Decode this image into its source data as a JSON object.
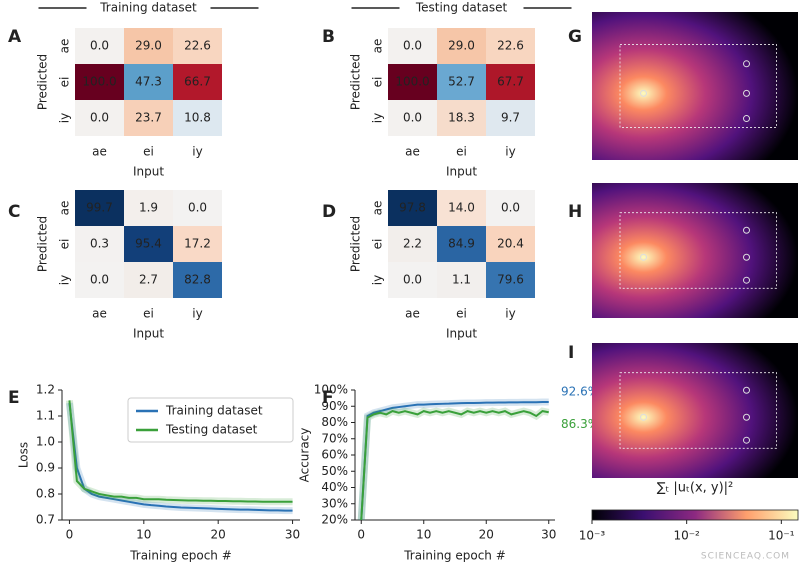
{
  "chart_data": [
    {
      "type": "heatmap",
      "panel": "A",
      "header": "Training dataset",
      "x_label": "Input",
      "y_label": "Predicted",
      "x_categories": [
        "ae",
        "ei",
        "iy"
      ],
      "y_categories": [
        "ae",
        "ei",
        "iy"
      ],
      "values": [
        [
          0.0,
          29.0,
          22.6
        ],
        [
          100.0,
          47.3,
          66.7
        ],
        [
          0.0,
          23.7,
          10.8
        ]
      ],
      "value_labels": [
        [
          "0.0",
          "29.0",
          "22.6"
        ],
        [
          "100.0",
          "47.3",
          "66.7"
        ],
        [
          "0.0",
          "23.7",
          "10.8"
        ]
      ],
      "colors": [
        [
          "#f3f1ef",
          "#f6c6a8",
          "#f8d6c0"
        ],
        [
          "#67001f",
          "#5c9fca",
          "#b2182b"
        ],
        [
          "#f3f1ef",
          "#f7d0b8",
          "#dde8f0"
        ]
      ]
    },
    {
      "type": "heatmap",
      "panel": "B",
      "header": "Testing dataset",
      "x_label": "Input",
      "y_label": "Predicted",
      "x_categories": [
        "ae",
        "ei",
        "iy"
      ],
      "y_categories": [
        "ae",
        "ei",
        "iy"
      ],
      "values": [
        [
          0.0,
          29.0,
          22.6
        ],
        [
          100.0,
          52.7,
          67.7
        ],
        [
          0.0,
          18.3,
          9.7
        ]
      ],
      "value_labels": [
        [
          "0.0",
          "29.0",
          "22.6"
        ],
        [
          "100.0",
          "52.7",
          "67.7"
        ],
        [
          "0.0",
          "18.3",
          "9.7"
        ]
      ],
      "colors": [
        [
          "#f3f1ef",
          "#f6c6a8",
          "#f8d6c0"
        ],
        [
          "#67001f",
          "#6aa8d1",
          "#ae1729"
        ],
        [
          "#f3f1ef",
          "#f6dccb",
          "#dfe8ef"
        ]
      ]
    },
    {
      "type": "heatmap",
      "panel": "C",
      "x_label": "Input",
      "y_label": "Predicted",
      "x_categories": [
        "ae",
        "ei",
        "iy"
      ],
      "y_categories": [
        "ae",
        "ei",
        "iy"
      ],
      "values": [
        [
          99.7,
          1.9,
          0.0
        ],
        [
          0.3,
          95.4,
          17.2
        ],
        [
          0.0,
          2.7,
          82.8
        ]
      ],
      "value_labels": [
        [
          "99.7",
          "1.9",
          "0.0"
        ],
        [
          "0.3",
          "95.4",
          "17.2"
        ],
        [
          "0.0",
          "2.7",
          "82.8"
        ]
      ],
      "colors": [
        [
          "#0b305f",
          "#f3efec",
          "#f3f2f1"
        ],
        [
          "#f3f1f0",
          "#123f79",
          "#f9d9c6"
        ],
        [
          "#f3f2f1",
          "#f2ede9",
          "#2d6aa8"
        ]
      ]
    },
    {
      "type": "heatmap",
      "panel": "D",
      "x_label": "Input",
      "y_label": "Predicted",
      "x_categories": [
        "ae",
        "ei",
        "iy"
      ],
      "y_categories": [
        "ae",
        "ei",
        "iy"
      ],
      "values": [
        [
          97.8,
          14.0,
          0.0
        ],
        [
          2.2,
          84.9,
          20.4
        ],
        [
          0.0,
          1.1,
          79.6
        ]
      ],
      "value_labels": [
        [
          "97.8",
          "14.0",
          "0.0"
        ],
        [
          "2.2",
          "84.9",
          "20.4"
        ],
        [
          "0.0",
          "1.1",
          "79.6"
        ]
      ],
      "colors": [
        [
          "#0b305f",
          "#f8e2d4",
          "#f3f2f1"
        ],
        [
          "#f2eeeb",
          "#2a65a3",
          "#f9d4bd"
        ],
        [
          "#f3f2f1",
          "#f2efed",
          "#3674b0"
        ]
      ]
    },
    {
      "type": "line",
      "panel": "E",
      "x_label": "Training epoch #",
      "y_label": "Loss",
      "x": [
        0,
        1,
        2,
        3,
        4,
        5,
        6,
        7,
        8,
        9,
        10,
        11,
        12,
        13,
        14,
        15,
        16,
        17,
        18,
        19,
        20,
        21,
        22,
        23,
        24,
        25,
        26,
        27,
        28,
        29,
        30
      ],
      "xlim": [
        -1,
        31
      ],
      "xticks": [
        0,
        10,
        20,
        30
      ],
      "ylim": [
        0.7,
        1.2
      ],
      "yticks": [
        0.7,
        0.8,
        0.9,
        {
          "value": 1.0,
          "label": "1.0"
        },
        1.1,
        1.2
      ],
      "legend": "upper right",
      "series": [
        {
          "name": "Training dataset",
          "color": "#2a72b5",
          "values": [
            1.15,
            0.9,
            0.82,
            0.8,
            0.79,
            0.785,
            0.78,
            0.775,
            0.77,
            0.765,
            0.76,
            0.757,
            0.755,
            0.752,
            0.75,
            0.748,
            0.747,
            0.746,
            0.745,
            0.744,
            0.743,
            0.742,
            0.741,
            0.74,
            0.74,
            0.739,
            0.738,
            0.737,
            0.737,
            0.736,
            0.736
          ]
        },
        {
          "name": "Testing dataset",
          "color": "#3aa03a",
          "values": [
            1.16,
            0.85,
            0.82,
            0.81,
            0.8,
            0.795,
            0.79,
            0.79,
            0.785,
            0.785,
            0.78,
            0.78,
            0.78,
            0.778,
            0.777,
            0.776,
            0.775,
            0.775,
            0.774,
            0.774,
            0.773,
            0.773,
            0.772,
            0.772,
            0.771,
            0.771,
            0.77,
            0.77,
            0.77,
            0.77,
            0.77
          ]
        }
      ]
    },
    {
      "type": "line",
      "panel": "F",
      "x_label": "Training epoch #",
      "y_label": "Accuracy",
      "x": [
        0,
        1,
        2,
        3,
        4,
        5,
        6,
        7,
        8,
        9,
        10,
        11,
        12,
        13,
        14,
        15,
        16,
        17,
        18,
        19,
        20,
        21,
        22,
        23,
        24,
        25,
        26,
        27,
        28,
        29,
        30
      ],
      "xlim": [
        -1,
        31
      ],
      "xticks": [
        0,
        10,
        20,
        30
      ],
      "ylim": [
        20,
        100
      ],
      "yticks": [
        {
          "value": 20,
          "label": "20%"
        },
        {
          "value": 30,
          "label": "30%"
        },
        {
          "value": 40,
          "label": "40%"
        },
        {
          "value": 50,
          "label": "50%"
        },
        {
          "value": 60,
          "label": "60%"
        },
        {
          "value": 70,
          "label": "70%"
        },
        {
          "value": 80,
          "label": "80%"
        },
        {
          "value": 90,
          "label": "90%"
        },
        {
          "value": 100,
          "label": "100%"
        }
      ],
      "series": [
        {
          "name": "Training dataset",
          "color": "#2a72b5",
          "end_label": {
            "value": 92.6,
            "label": "92.6%"
          },
          "values": [
            20,
            84,
            86,
            87,
            88,
            89,
            89.5,
            90,
            90.5,
            91,
            91,
            91.2,
            91.4,
            91.5,
            91.6,
            91.8,
            91.9,
            92,
            92,
            92.1,
            92.2,
            92.2,
            92.3,
            92.3,
            92.4,
            92.4,
            92.5,
            92.5,
            92.5,
            92.6,
            92.6
          ]
        },
        {
          "name": "Testing dataset",
          "color": "#3aa03a",
          "end_label": {
            "value": 86.3,
            "label": "86.3%"
          },
          "values": [
            20,
            83,
            85,
            86,
            85,
            87,
            86,
            87,
            86,
            85,
            87,
            86,
            87,
            86,
            87,
            86,
            85,
            87,
            86,
            87,
            86,
            87,
            86,
            87,
            85,
            86,
            87,
            86,
            84,
            87,
            86.3
          ]
        }
      ]
    },
    {
      "type": "image",
      "panel": "G"
    },
    {
      "type": "image",
      "panel": "H"
    },
    {
      "type": "image",
      "panel": "I"
    },
    {
      "type": "colorbar",
      "label": "∑ₜ |uₜ(x, y)|²",
      "log": true,
      "xlim": [
        0.001,
        0.15
      ],
      "xticks": [
        {
          "value": 0.001,
          "label": "10⁻³"
        },
        {
          "value": 0.01,
          "label": "10⁻²"
        },
        {
          "value": 0.1,
          "label": "10⁻¹"
        }
      ]
    }
  ],
  "watermark": "SCIENCEAQ.COM"
}
